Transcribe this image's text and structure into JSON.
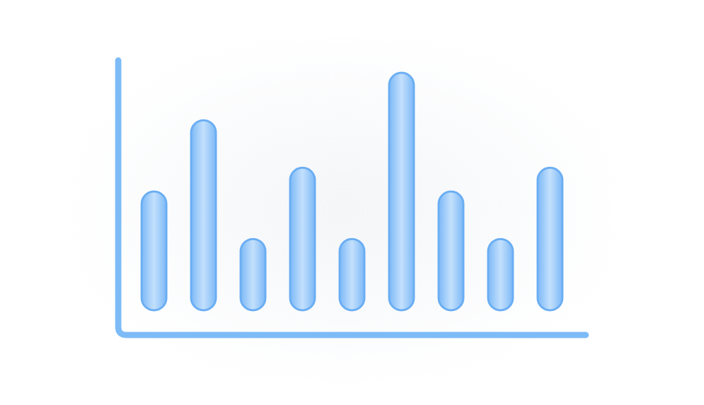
{
  "chart_data": {
    "type": "bar",
    "categories": [
      "",
      "",
      "",
      "",
      "",
      "",
      "",
      "",
      ""
    ],
    "values": [
      5,
      8,
      3,
      6,
      3,
      10,
      5,
      3,
      6
    ],
    "title": "",
    "xlabel": "",
    "ylabel": "",
    "ylim": [
      0,
      10
    ],
    "grid": false,
    "legend": "none"
  },
  "colors": {
    "bar_fill_dark": "#7db9f7",
    "bar_fill_light": "#c3e0fc",
    "bar_stroke": "#6aaef3",
    "axis_dark": "#7dbbf7",
    "axis_light": "#b9dbfb"
  }
}
